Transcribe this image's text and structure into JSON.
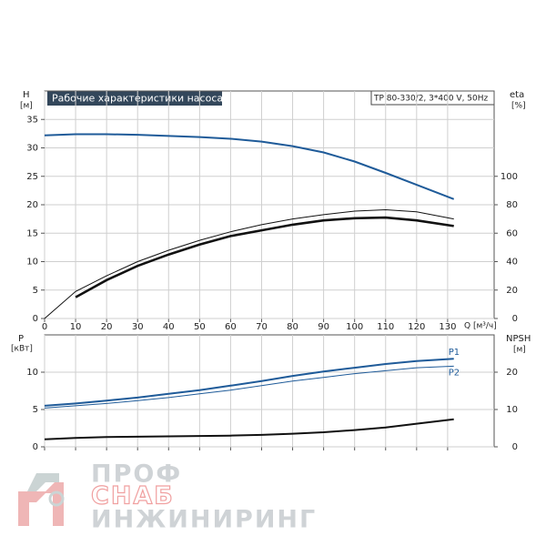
{
  "chart_data": [
    {
      "type": "line",
      "title": "Рабочие характеристики насоса",
      "subtitle": "TP 80-330/2, 3*400 V, 50Hz",
      "ylabel": "H",
      "yunit": "[м]",
      "y2label": "eta",
      "y2unit": "[%]",
      "xlabel": "Q [м³/ч]",
      "x": [
        0,
        10,
        20,
        30,
        40,
        50,
        60,
        70,
        80,
        90,
        100,
        110,
        120,
        132
      ],
      "xlim": [
        0,
        145
      ],
      "xticks": [
        0,
        10,
        20,
        30,
        40,
        50,
        60,
        70,
        80,
        90,
        100,
        110,
        120,
        130
      ],
      "xtick_labels": true,
      "ylim": [
        0,
        40
      ],
      "yticks": [
        0,
        5,
        10,
        15,
        20,
        25,
        30,
        35
      ],
      "y2lim": [
        0,
        160
      ],
      "y2ticks": [
        0,
        20,
        40,
        60,
        80,
        100
      ],
      "grid": true,
      "series": [
        {
          "color": "#1f5b99",
          "width": 2,
          "values": [
            32.2,
            32.4,
            32.4,
            32.3,
            32.1,
            31.9,
            31.6,
            31.1,
            30.3,
            29.2,
            27.6,
            25.6,
            23.5,
            21.0
          ]
        },
        {
          "color": "#111111",
          "width": 1,
          "axis": "y2",
          "values": [
            0,
            19,
            30,
            40,
            48,
            55,
            61,
            66,
            70,
            73,
            75.5,
            76.5,
            75,
            70
          ]
        },
        {
          "color": "#111111",
          "width": 2.6,
          "axis": "y2",
          "values": [
            null,
            15,
            27,
            37,
            45,
            52,
            58,
            62,
            66,
            69,
            70.5,
            71,
            69,
            65
          ]
        }
      ]
    },
    {
      "type": "line",
      "ylabel": "P",
      "yunit": "[кВт]",
      "y2label": "NPSH",
      "y2unit": "[м]",
      "x": [
        0,
        10,
        20,
        30,
        40,
        50,
        60,
        70,
        80,
        90,
        100,
        110,
        120,
        132
      ],
      "xlim": [
        0,
        145
      ],
      "xticks": [
        0,
        10,
        20,
        30,
        40,
        50,
        60,
        70,
        80,
        90,
        100,
        110,
        120,
        130
      ],
      "xtick_labels": false,
      "ylim": [
        0,
        15
      ],
      "yticks": [
        0,
        5,
        10
      ],
      "y2lim": [
        0,
        30
      ],
      "y2ticks": [
        0,
        10,
        20
      ],
      "grid": true,
      "series": [
        {
          "name": "P1",
          "color": "#1f5b99",
          "width": 2,
          "values": [
            5.5,
            5.8,
            6.2,
            6.6,
            7.1,
            7.6,
            8.2,
            8.8,
            9.5,
            10.1,
            10.6,
            11.1,
            11.5,
            11.8
          ]
        },
        {
          "name": "P2",
          "color": "#1f5b99",
          "width": 1,
          "values": [
            5.2,
            5.5,
            5.8,
            6.2,
            6.6,
            7.1,
            7.6,
            8.2,
            8.8,
            9.3,
            9.8,
            10.2,
            10.6,
            10.8
          ]
        },
        {
          "color": "#111111",
          "width": 2,
          "axis": "y2",
          "values": [
            2.0,
            2.4,
            2.6,
            2.7,
            2.8,
            2.9,
            3.0,
            3.2,
            3.5,
            3.9,
            4.5,
            5.2,
            6.2,
            7.4
          ]
        }
      ]
    }
  ],
  "watermark": {
    "line1": "ПРОФ",
    "line2": "СНАБ",
    "line3": "ИНЖИНИРИНГ"
  }
}
